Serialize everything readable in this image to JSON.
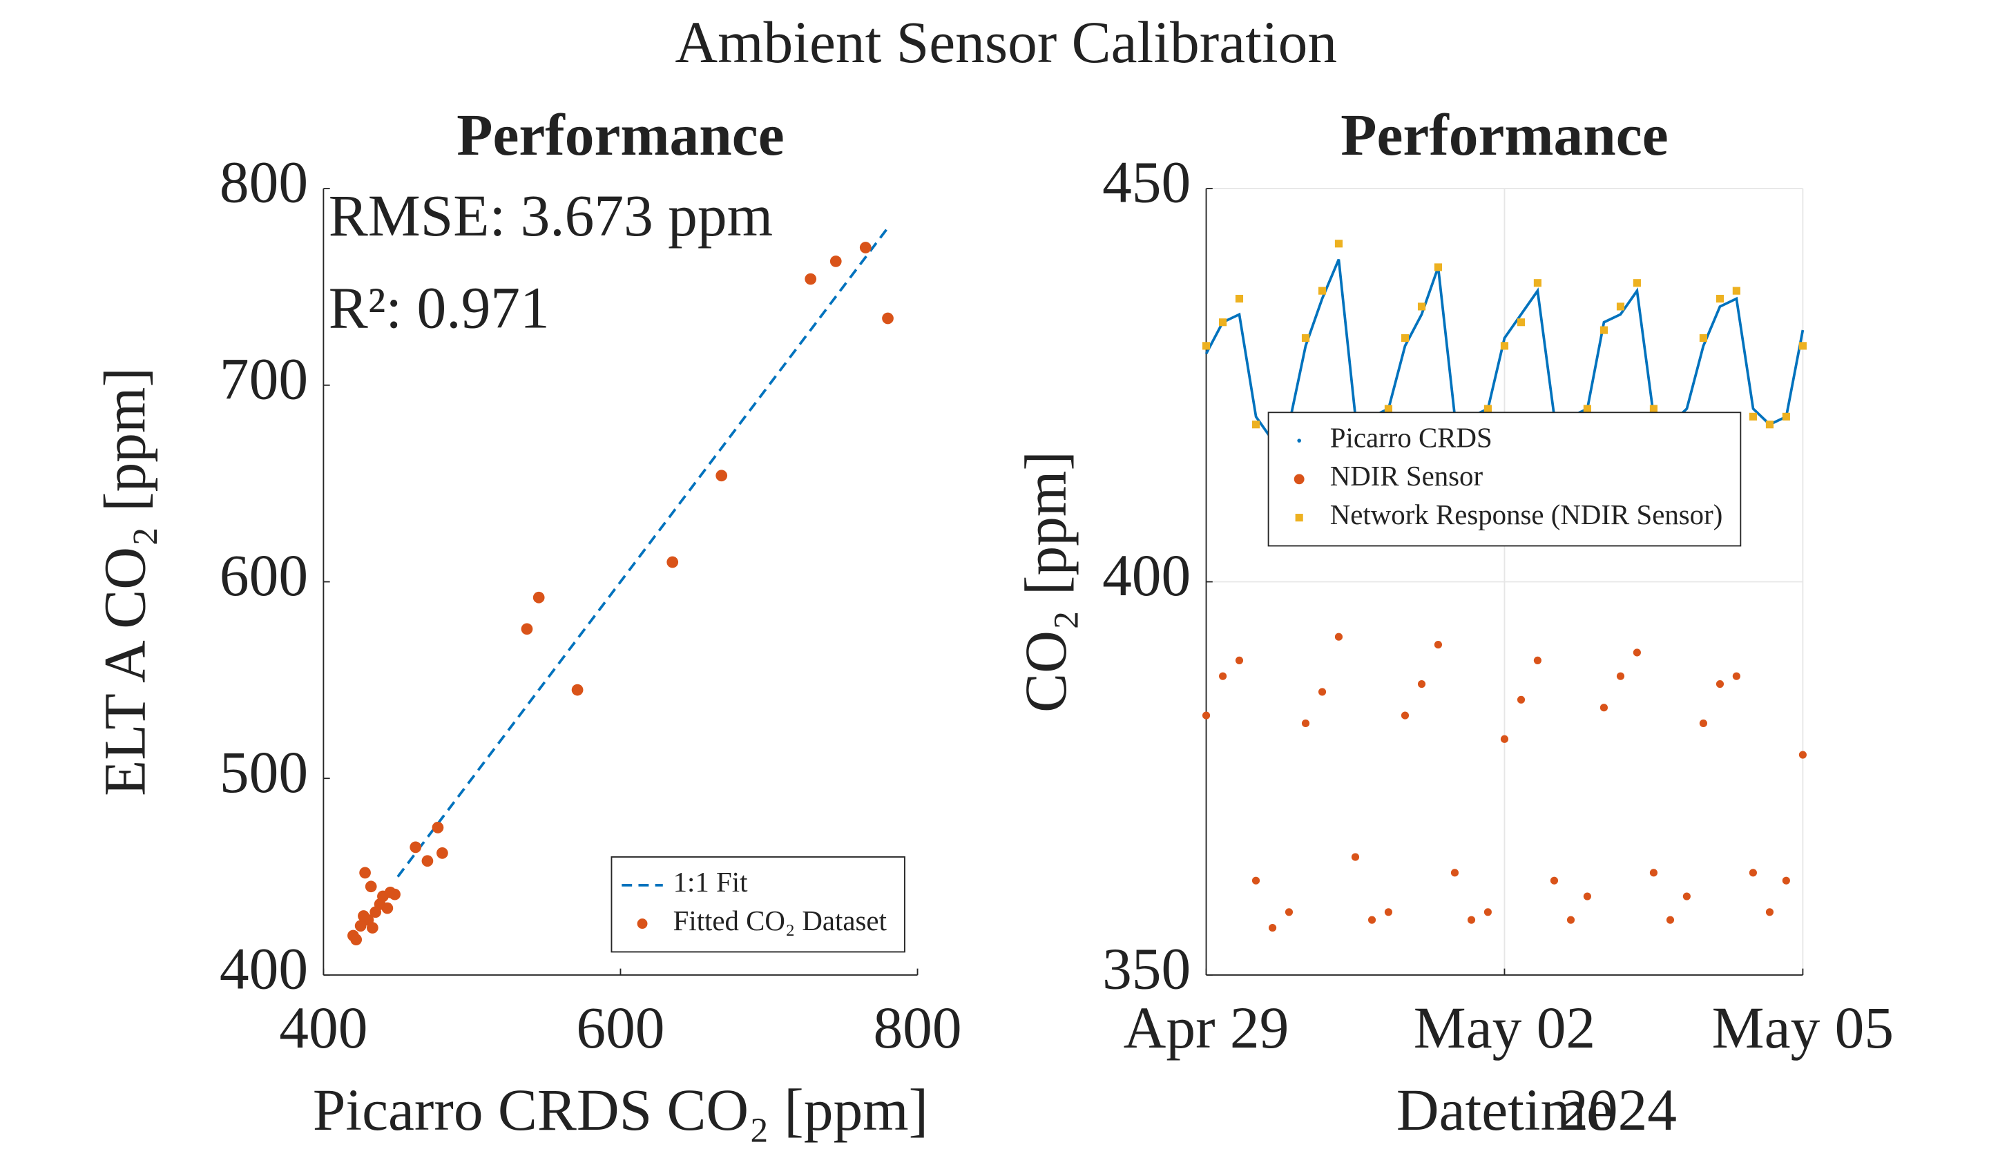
{
  "title": "Ambient Sensor Calibration",
  "chart_data": [
    {
      "type": "scatter",
      "title": "Performance",
      "x_label": "Picarro CRDS CO₂ [ppm]",
      "y_label": "ELT A CO₂ [ppm]",
      "annotations": [
        "RMSE: 3.673 ppm",
        "R²: 0.971"
      ],
      "xlim": [
        400,
        800
      ],
      "ylim": [
        400,
        800
      ],
      "xticks": [
        400,
        600,
        800
      ],
      "yticks": [
        400,
        500,
        600,
        700,
        800
      ],
      "grid": false,
      "legend": "lower right",
      "series": [
        {
          "name": "1:1 Fit",
          "type": "line",
          "color": "#0072bd",
          "x": [
            450,
            780
          ],
          "values": [
            450,
            780
          ]
        },
        {
          "name": "Fitted CO₂ Dataset",
          "type": "scatter",
          "color": "#d95319",
          "x": [
            780,
            765,
            745,
            728,
            668,
            635,
            571,
            545,
            537,
            477,
            480,
            470,
            462,
            420,
            425,
            430,
            435,
            440,
            445,
            428,
            432,
            422,
            438,
            427,
            433,
            443,
            448
          ],
          "values": [
            734,
            770,
            763,
            754,
            654,
            610,
            545,
            592,
            576,
            475,
            462,
            458,
            465,
            420,
            425,
            428,
            432,
            440,
            442,
            452,
            445,
            418,
            436,
            430,
            424,
            434,
            441
          ]
        }
      ]
    },
    {
      "type": "line",
      "title": "Performance",
      "x_label": "Datetime",
      "x_sublabel": "2024",
      "y_label": "CO₂ [ppm]",
      "xlim": [
        0,
        6
      ],
      "ylim": [
        350,
        450
      ],
      "xticks": [
        {
          "value": 0,
          "label": "Apr 29"
        },
        {
          "value": 3,
          "label": "May 02"
        },
        {
          "value": 6,
          "label": "May 05"
        }
      ],
      "yticks": [
        350,
        400,
        450
      ],
      "grid": true,
      "legend": "center",
      "x": [
        0,
        0.167,
        0.333,
        0.5,
        0.667,
        0.833,
        1,
        1.167,
        1.333,
        1.5,
        1.667,
        1.833,
        2,
        2.167,
        2.333,
        2.5,
        2.667,
        2.833,
        3,
        3.167,
        3.333,
        3.5,
        3.667,
        3.833,
        4,
        4.167,
        4.333,
        4.5,
        4.667,
        4.833,
        5,
        5.167,
        5.333,
        5.5,
        5.667,
        5.833,
        6
      ],
      "series": [
        {
          "name": "Picarro CRDS",
          "type": "line",
          "color": "#0072bd",
          "values": [
            429,
            433,
            434,
            421,
            418,
            420,
            430,
            436,
            441,
            421,
            421,
            422,
            430,
            434,
            440,
            421,
            421,
            422,
            431,
            434,
            437,
            421,
            421,
            422,
            433,
            434,
            437,
            421,
            420,
            422,
            430,
            435,
            436,
            422,
            420,
            421,
            432
          ]
        },
        {
          "name": "NDIR Sensor",
          "type": "scatter",
          "color": "#d95319",
          "values": [
            383,
            388,
            390,
            362,
            356,
            358,
            382,
            386,
            393,
            365,
            357,
            358,
            383,
            387,
            392,
            363,
            357,
            358,
            380,
            385,
            390,
            362,
            357,
            360,
            384,
            388,
            391,
            363,
            357,
            360,
            382,
            387,
            388,
            363,
            358,
            362,
            378
          ]
        },
        {
          "name": "Network Response (NDIR Sensor)",
          "type": "scatter",
          "color": "#edb120",
          "values": [
            430,
            433,
            436,
            420,
            418,
            421,
            431,
            437,
            443,
            421,
            421,
            422,
            431,
            435,
            440,
            421,
            421,
            422,
            430,
            433,
            438,
            421,
            421,
            422,
            432,
            435,
            438,
            422,
            420,
            421,
            431,
            436,
            437,
            421,
            420,
            421,
            430
          ]
        }
      ]
    }
  ]
}
